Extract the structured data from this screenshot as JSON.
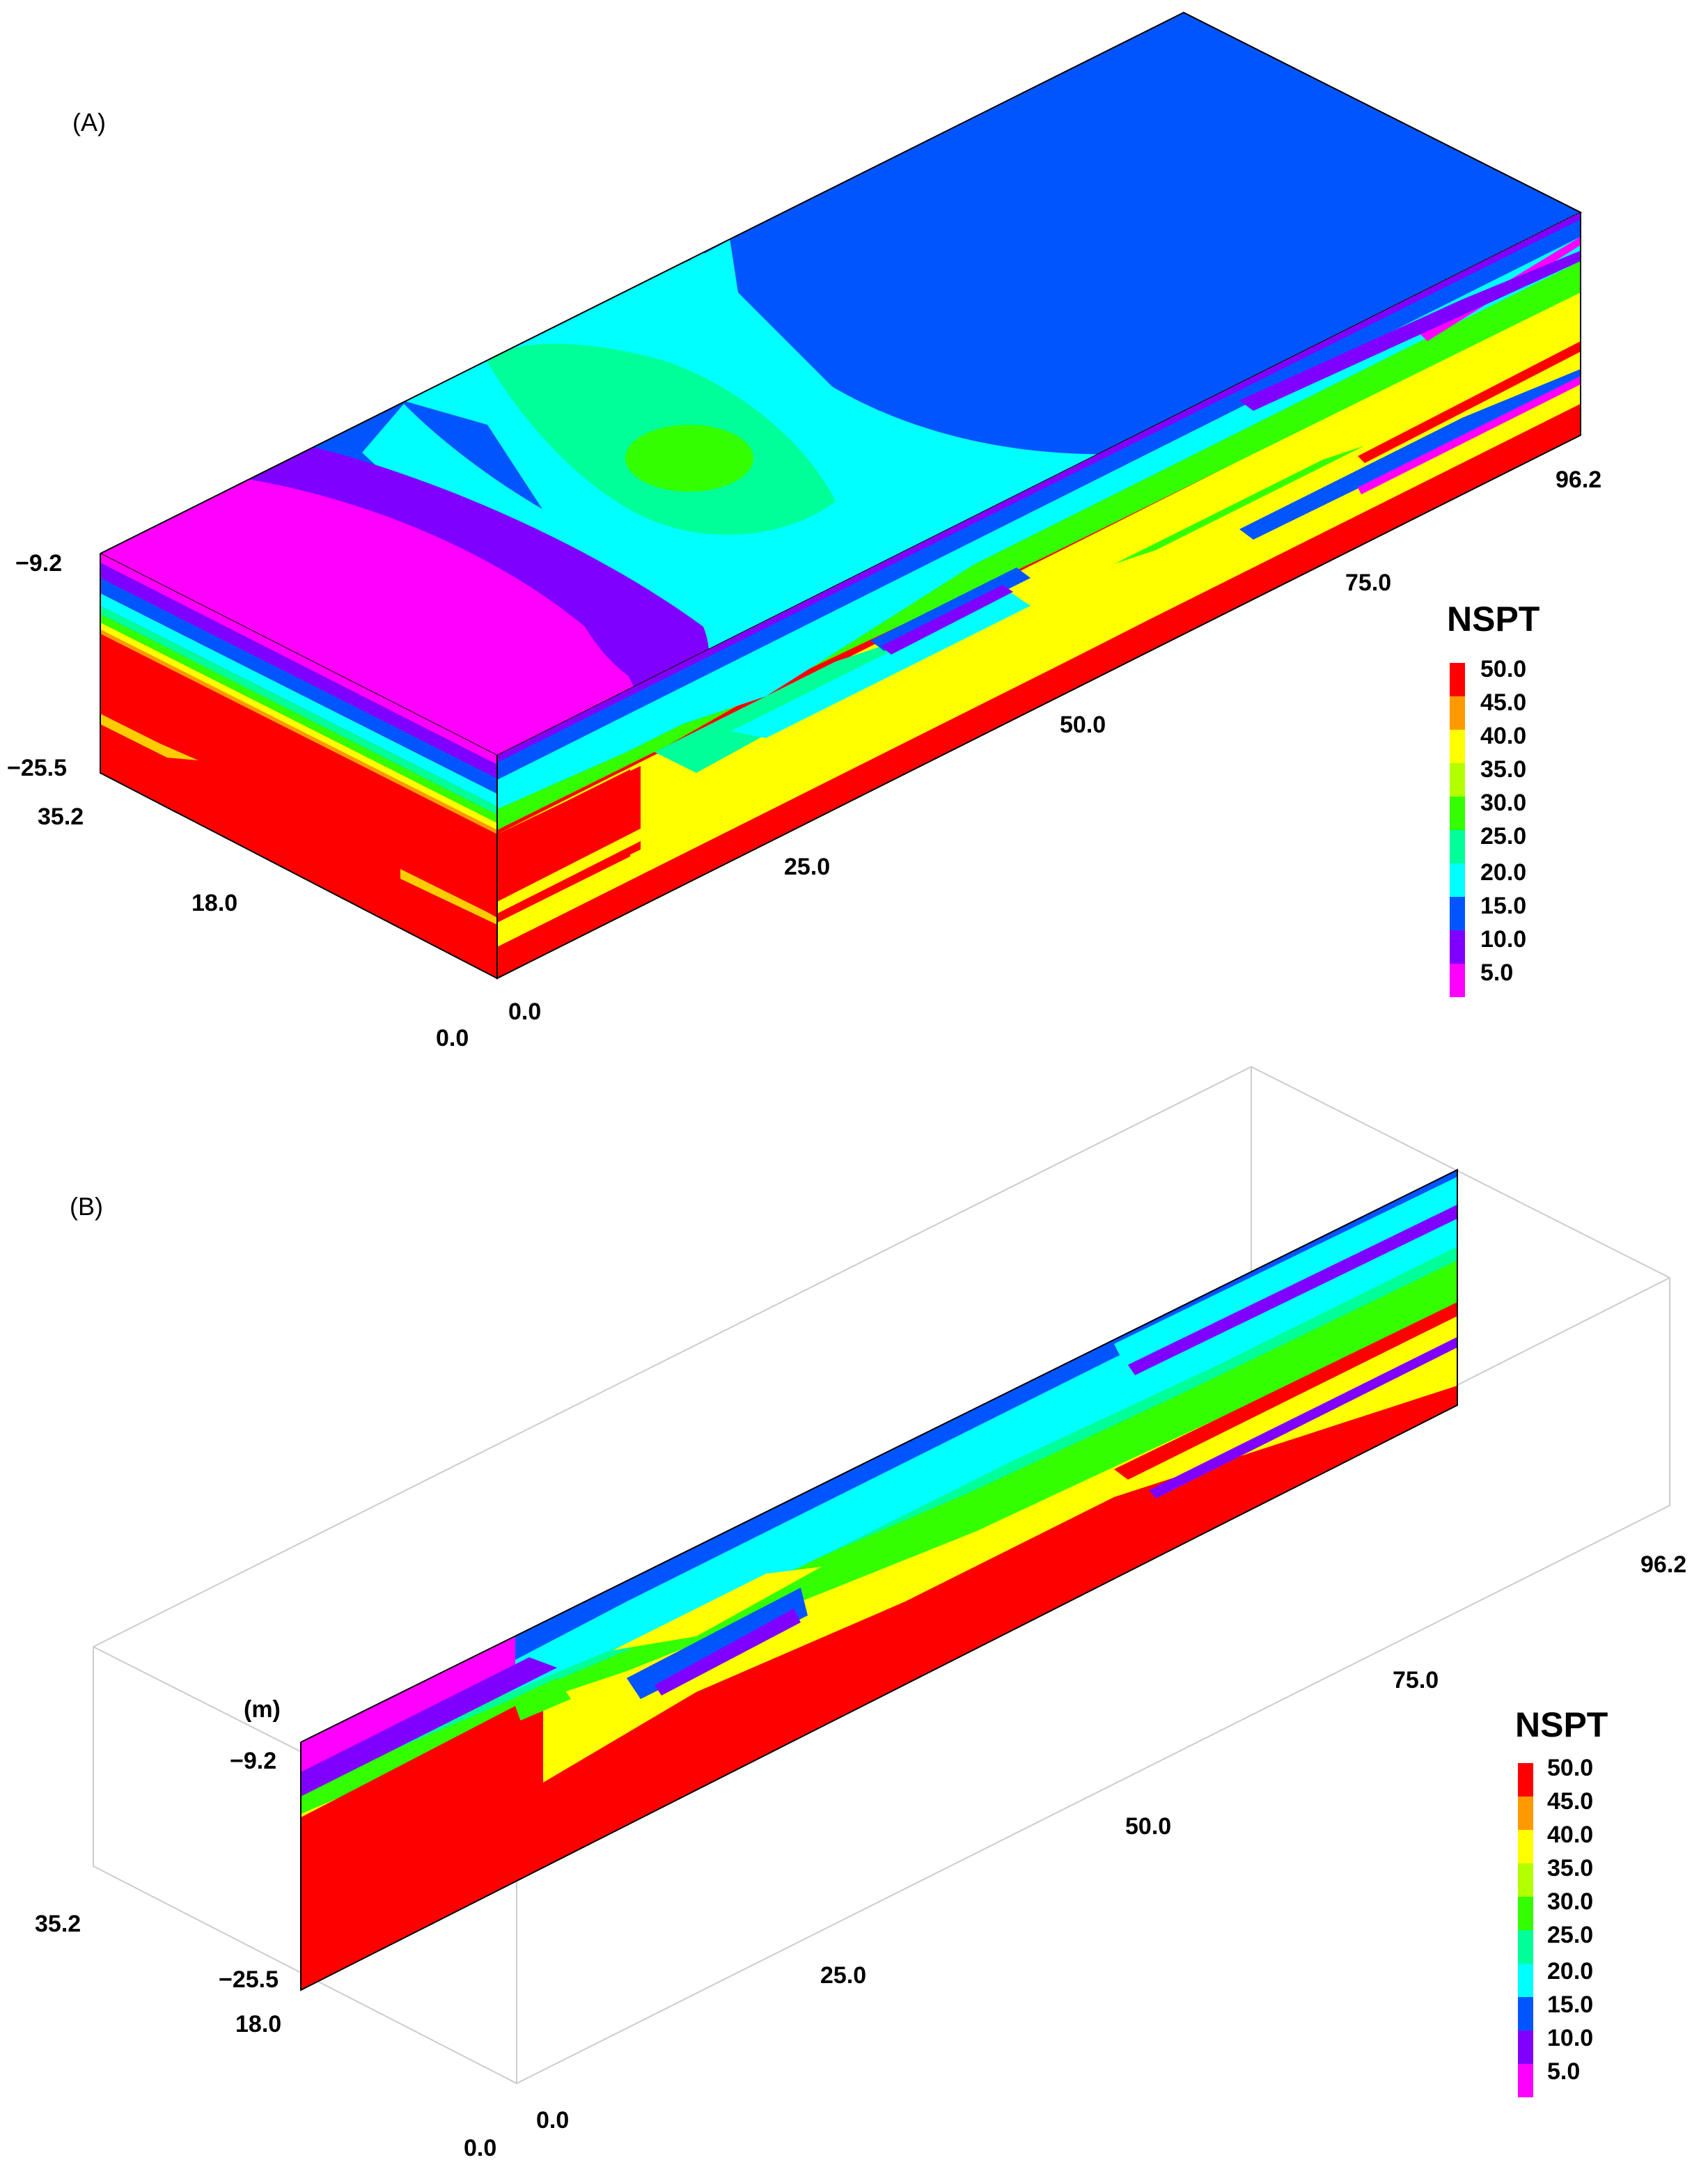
{
  "colors": {
    "c50": "#ff0000",
    "c45": "#ff9900",
    "c40": "#ffff00",
    "c35": "#b3ff00",
    "c30": "#33ff00",
    "c25": "#00ff99",
    "c20": "#00ffff",
    "c15": "#0055ff",
    "c10": "#8000ff",
    "c05": "#ff00ff"
  },
  "panel_a": {
    "label": "(A)",
    "axis": {
      "depth_top": "−9.2",
      "depth_bottom": "−25.5",
      "y_max": "35.2",
      "y_mid": "18.0",
      "y_min": "0.0",
      "x_0": "0.0",
      "x_25": "25.0",
      "x_50": "50.0",
      "x_75": "75.0",
      "x_max": "96.2"
    },
    "legend": {
      "title": "NSPT",
      "entries": [
        "50.0",
        "45.0",
        "40.0",
        "35.0",
        "30.0",
        "25.0",
        "20.0",
        "15.0",
        "10.0",
        "5.0"
      ]
    }
  },
  "panel_b": {
    "label": "(B)",
    "axis": {
      "unit": "(m)",
      "depth_top": "−9.2",
      "depth_bottom": "−25.5",
      "y_max": "35.2",
      "y_mid": "18.0",
      "y_min": "0.0",
      "x_0": "0.0",
      "x_25": "25.0",
      "x_50": "50.0",
      "x_75": "75.0",
      "x_max": "96.2"
    },
    "legend": {
      "title": "NSPT",
      "entries": [
        "50.0",
        "45.0",
        "40.0",
        "35.0",
        "30.0",
        "25.0",
        "20.0",
        "15.0",
        "10.0",
        "5.0"
      ]
    }
  }
}
